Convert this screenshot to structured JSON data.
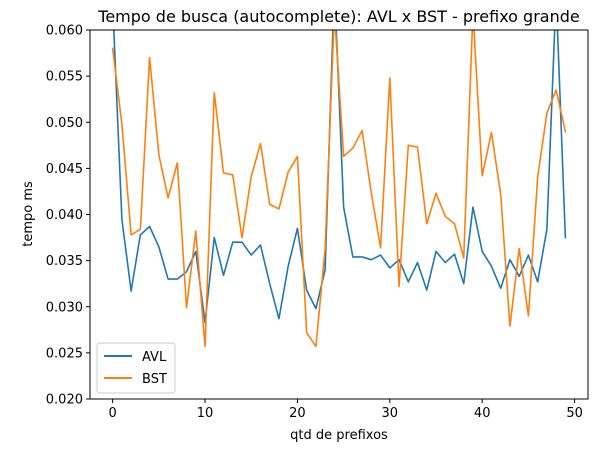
{
  "chart_data": {
    "type": "line",
    "title": "Tempo de busca (autocomplete): AVL x BST - prefixo grande",
    "xlabel": "qtd de prefixos",
    "ylabel": "tempo ms",
    "xlim": [
      -2.45,
      51.45
    ],
    "ylim": [
      0.02,
      0.06
    ],
    "xticks": [
      0,
      10,
      20,
      30,
      40,
      50
    ],
    "xtick_labels": [
      "0",
      "10",
      "20",
      "30",
      "40",
      "50"
    ],
    "yticks": [
      0.02,
      0.025,
      0.03,
      0.035,
      0.04,
      0.045,
      0.05,
      0.055,
      0.06
    ],
    "ytick_labels": [
      "0.020",
      "0.025",
      "0.030",
      "0.035",
      "0.040",
      "0.045",
      "0.050",
      "0.055",
      "0.060"
    ],
    "grid": false,
    "legend_position": "lower-left",
    "x": [
      0,
      1,
      2,
      3,
      4,
      5,
      6,
      7,
      8,
      9,
      10,
      11,
      12,
      13,
      14,
      15,
      16,
      17,
      18,
      19,
      20,
      21,
      22,
      23,
      24,
      25,
      26,
      27,
      28,
      29,
      30,
      31,
      32,
      33,
      34,
      35,
      36,
      37,
      38,
      39,
      40,
      41,
      42,
      43,
      44,
      45,
      46,
      47,
      48,
      49
    ],
    "series": [
      {
        "name": "AVL",
        "color": "#1f77b4",
        "values": [
          0.063,
          0.0395,
          0.0317,
          0.0378,
          0.0387,
          0.0365,
          0.033,
          0.033,
          0.0338,
          0.036,
          0.0283,
          0.0375,
          0.0334,
          0.037,
          0.037,
          0.0356,
          0.0367,
          0.0325,
          0.0287,
          0.0344,
          0.0385,
          0.0318,
          0.0298,
          0.034,
          0.065,
          0.0408,
          0.0354,
          0.0354,
          0.0351,
          0.0356,
          0.0342,
          0.0351,
          0.0327,
          0.0348,
          0.0318,
          0.036,
          0.0348,
          0.0357,
          0.0325,
          0.0408,
          0.036,
          0.0344,
          0.032,
          0.0351,
          0.0333,
          0.0356,
          0.0327,
          0.0384,
          0.064,
          0.0375
        ]
      },
      {
        "name": "BST",
        "color": "#ff7f0e",
        "values": [
          0.058,
          0.0498,
          0.0378,
          0.0384,
          0.057,
          0.0465,
          0.0418,
          0.0456,
          0.0299,
          0.0382,
          0.0257,
          0.0532,
          0.0445,
          0.0443,
          0.0375,
          0.0441,
          0.0477,
          0.0411,
          0.0406,
          0.0446,
          0.0463,
          0.0272,
          0.0257,
          0.0363,
          0.062,
          0.0463,
          0.0472,
          0.0491,
          0.0423,
          0.0364,
          0.0548,
          0.0322,
          0.0475,
          0.0473,
          0.039,
          0.0423,
          0.0398,
          0.039,
          0.0353,
          0.062,
          0.0442,
          0.0489,
          0.0422,
          0.0279,
          0.0363,
          0.029,
          0.044,
          0.051,
          0.0535,
          0.049
        ]
      }
    ]
  }
}
